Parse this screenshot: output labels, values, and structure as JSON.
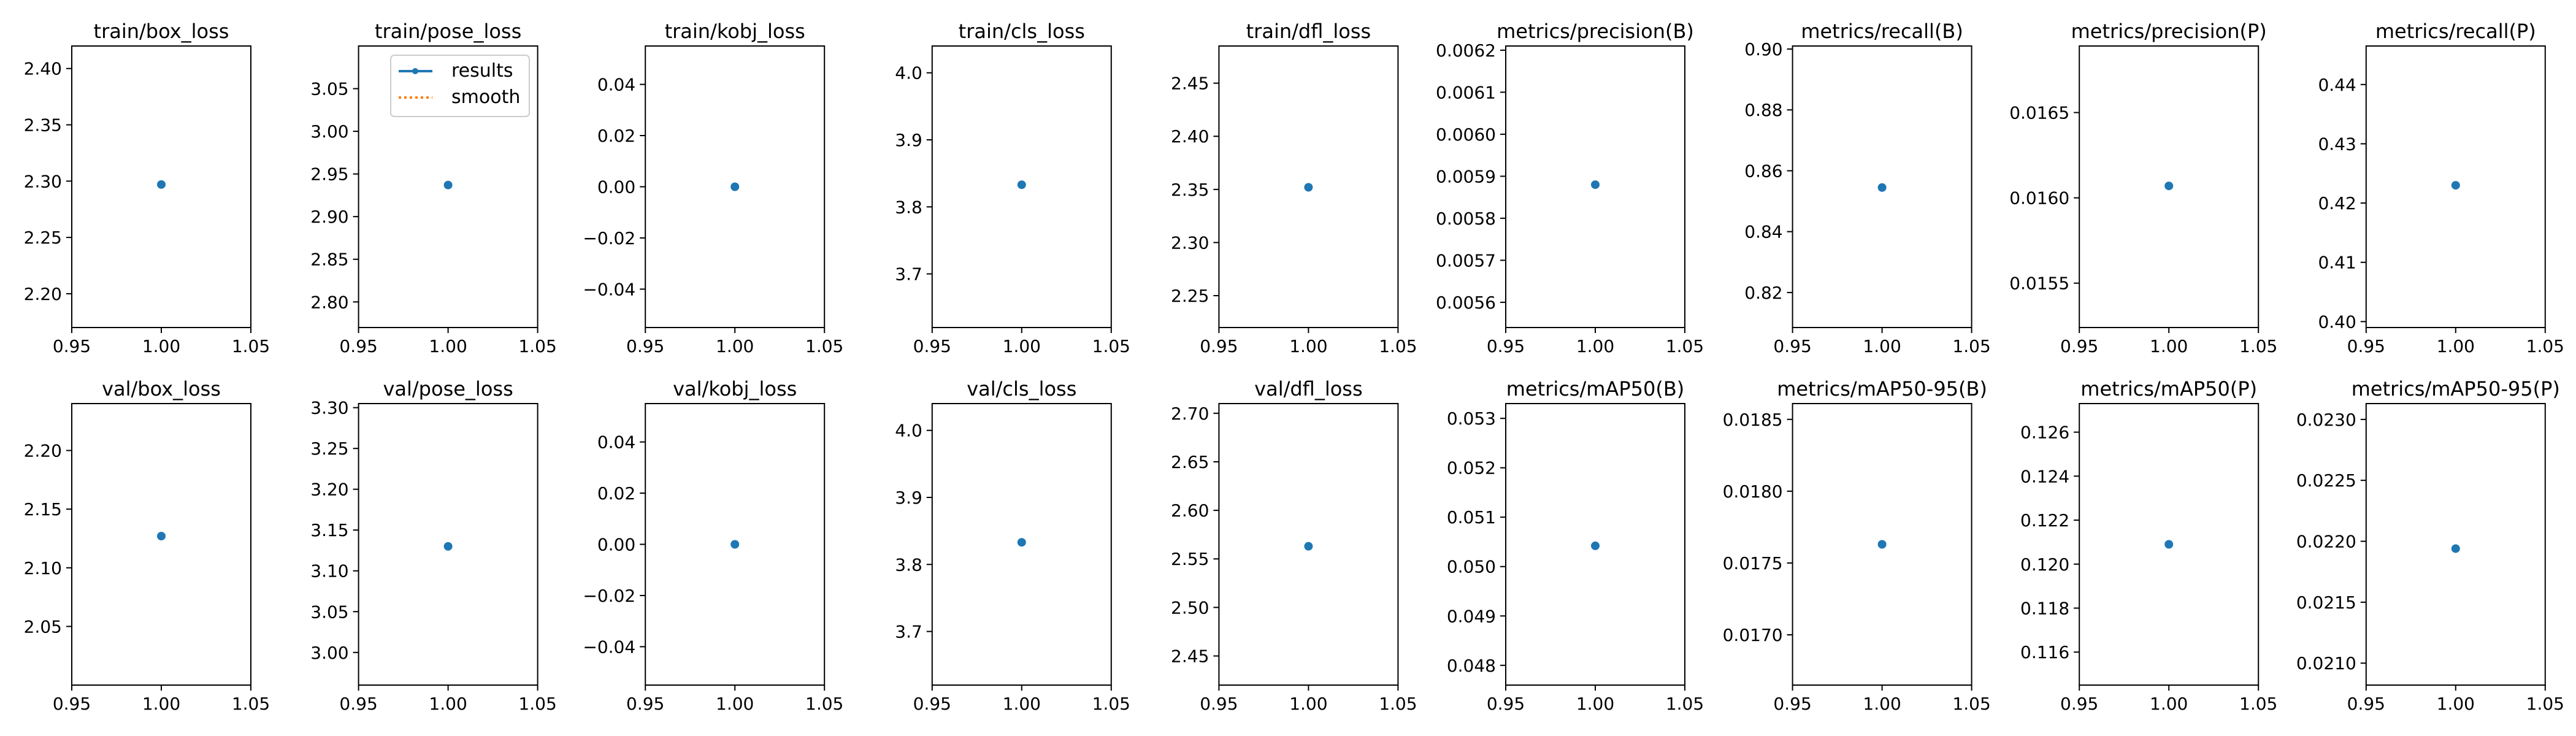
{
  "legend": {
    "entries": [
      {
        "label": "results",
        "color": "#1f77b4",
        "style": "solid-marker"
      },
      {
        "label": "smooth",
        "color": "#ff7f0e",
        "style": "dotted"
      }
    ],
    "placement": "upper-right of train/pose_loss panel"
  },
  "chart_data": [
    {
      "type": "line",
      "title": "train/box_loss",
      "x": [
        1.0
      ],
      "series": [
        {
          "name": "results",
          "values": [
            2.297
          ]
        }
      ],
      "xlim": [
        0.95,
        1.05
      ],
      "xticks": [
        "0.95",
        "1.00",
        "1.05"
      ],
      "ylim": [
        2.17,
        2.42
      ],
      "yticks": [
        "2.20",
        "2.25",
        "2.30",
        "2.35",
        "2.40"
      ]
    },
    {
      "type": "line",
      "title": "train/pose_loss",
      "x": [
        1.0
      ],
      "series": [
        {
          "name": "results",
          "values": [
            2.937
          ]
        }
      ],
      "xlim": [
        0.95,
        1.05
      ],
      "xticks": [
        "0.95",
        "1.00",
        "1.05"
      ],
      "ylim": [
        2.77,
        3.1
      ],
      "yticks": [
        "2.80",
        "2.85",
        "2.90",
        "2.95",
        "3.00",
        "3.05"
      ]
    },
    {
      "type": "line",
      "title": "train/kobj_loss",
      "x": [
        1.0
      ],
      "series": [
        {
          "name": "results",
          "values": [
            0.0
          ]
        }
      ],
      "xlim": [
        0.95,
        1.05
      ],
      "xticks": [
        "0.95",
        "1.00",
        "1.05"
      ],
      "ylim": [
        -0.055,
        0.055
      ],
      "yticks": [
        "−0.04",
        "−0.02",
        "0.00",
        "0.02",
        "0.04"
      ]
    },
    {
      "type": "line",
      "title": "train/cls_loss",
      "x": [
        1.0
      ],
      "series": [
        {
          "name": "results",
          "values": [
            3.833
          ]
        }
      ],
      "xlim": [
        0.95,
        1.05
      ],
      "xticks": [
        "0.95",
        "1.00",
        "1.05"
      ],
      "ylim": [
        3.62,
        4.04
      ],
      "yticks": [
        "3.7",
        "3.8",
        "3.9",
        "4.0"
      ]
    },
    {
      "type": "line",
      "title": "train/dfl_loss",
      "x": [
        1.0
      ],
      "series": [
        {
          "name": "results",
          "values": [
            2.352
          ]
        }
      ],
      "xlim": [
        0.95,
        1.05
      ],
      "xticks": [
        "0.95",
        "1.00",
        "1.05"
      ],
      "ylim": [
        2.22,
        2.485
      ],
      "yticks": [
        "2.25",
        "2.30",
        "2.35",
        "2.40",
        "2.45"
      ]
    },
    {
      "type": "line",
      "title": "metrics/precision(B)",
      "x": [
        1.0
      ],
      "series": [
        {
          "name": "results",
          "values": [
            0.00588
          ]
        }
      ],
      "xlim": [
        0.95,
        1.05
      ],
      "xticks": [
        "0.95",
        "1.00",
        "1.05"
      ],
      "ylim": [
        0.00554,
        0.00621
      ],
      "yticks": [
        "0.0056",
        "0.0057",
        "0.0058",
        "0.0059",
        "0.0060",
        "0.0061",
        "0.0062"
      ]
    },
    {
      "type": "line",
      "title": "metrics/recall(B)",
      "x": [
        1.0
      ],
      "series": [
        {
          "name": "results",
          "values": [
            0.8545
          ]
        }
      ],
      "xlim": [
        0.95,
        1.05
      ],
      "xticks": [
        "0.95",
        "1.00",
        "1.05"
      ],
      "ylim": [
        0.8085,
        0.901
      ],
      "yticks": [
        "0.82",
        "0.84",
        "0.86",
        "0.88",
        "0.90"
      ]
    },
    {
      "type": "line",
      "title": "metrics/precision(P)",
      "x": [
        1.0
      ],
      "series": [
        {
          "name": "results",
          "values": [
            0.01607
          ]
        }
      ],
      "xlim": [
        0.95,
        1.05
      ],
      "xticks": [
        "0.95",
        "1.00",
        "1.05"
      ],
      "ylim": [
        0.01524,
        0.01689
      ],
      "yticks": [
        "0.0155",
        "0.0160",
        "0.0165"
      ]
    },
    {
      "type": "line",
      "title": "metrics/recall(P)",
      "x": [
        1.0
      ],
      "series": [
        {
          "name": "results",
          "values": [
            0.423
          ]
        }
      ],
      "xlim": [
        0.95,
        1.05
      ],
      "xticks": [
        "0.95",
        "1.00",
        "1.05"
      ],
      "ylim": [
        0.399,
        0.4465
      ],
      "yticks": [
        "0.40",
        "0.41",
        "0.42",
        "0.43",
        "0.44"
      ]
    },
    {
      "type": "line",
      "title": "val/box_loss",
      "x": [
        1.0
      ],
      "series": [
        {
          "name": "results",
          "values": [
            2.127
          ]
        }
      ],
      "xlim": [
        0.95,
        1.05
      ],
      "xticks": [
        "0.95",
        "1.00",
        "1.05"
      ],
      "ylim": [
        2.0,
        2.24
      ],
      "yticks": [
        "2.05",
        "2.10",
        "2.15",
        "2.20"
      ]
    },
    {
      "type": "line",
      "title": "val/pose_loss",
      "x": [
        1.0
      ],
      "series": [
        {
          "name": "results",
          "values": [
            3.13
          ]
        }
      ],
      "xlim": [
        0.95,
        1.05
      ],
      "xticks": [
        "0.95",
        "1.00",
        "1.05"
      ],
      "ylim": [
        2.96,
        3.305
      ],
      "yticks": [
        "3.00",
        "3.05",
        "3.10",
        "3.15",
        "3.20",
        "3.25",
        "3.30"
      ]
    },
    {
      "type": "line",
      "title": "val/kobj_loss",
      "x": [
        1.0
      ],
      "series": [
        {
          "name": "results",
          "values": [
            0.0
          ]
        }
      ],
      "xlim": [
        0.95,
        1.05
      ],
      "xticks": [
        "0.95",
        "1.00",
        "1.05"
      ],
      "ylim": [
        -0.055,
        0.055
      ],
      "yticks": [
        "−0.04",
        "−0.02",
        "0.00",
        "0.02",
        "0.04"
      ]
    },
    {
      "type": "line",
      "title": "val/cls_loss",
      "x": [
        1.0
      ],
      "series": [
        {
          "name": "results",
          "values": [
            3.833
          ]
        }
      ],
      "xlim": [
        0.95,
        1.05
      ],
      "xticks": [
        "0.95",
        "1.00",
        "1.05"
      ],
      "ylim": [
        3.62,
        4.04
      ],
      "yticks": [
        "3.7",
        "3.8",
        "3.9",
        "4.0"
      ]
    },
    {
      "type": "line",
      "title": "val/dfl_loss",
      "x": [
        1.0
      ],
      "series": [
        {
          "name": "results",
          "values": [
            2.563
          ]
        }
      ],
      "xlim": [
        0.95,
        1.05
      ],
      "xticks": [
        "0.95",
        "1.00",
        "1.05"
      ],
      "ylim": [
        2.42,
        2.71
      ],
      "yticks": [
        "2.45",
        "2.50",
        "2.55",
        "2.60",
        "2.65",
        "2.70"
      ]
    },
    {
      "type": "line",
      "title": "metrics/mAP50(B)",
      "x": [
        1.0
      ],
      "series": [
        {
          "name": "results",
          "values": [
            0.05042
          ]
        }
      ],
      "xlim": [
        0.95,
        1.05
      ],
      "xticks": [
        "0.95",
        "1.00",
        "1.05"
      ],
      "ylim": [
        0.0476,
        0.0533
      ],
      "yticks": [
        "0.048",
        "0.049",
        "0.050",
        "0.051",
        "0.052",
        "0.053"
      ]
    },
    {
      "type": "line",
      "title": "metrics/mAP50-95(B)",
      "x": [
        1.0
      ],
      "series": [
        {
          "name": "results",
          "values": [
            0.01763
          ]
        }
      ],
      "xlim": [
        0.95,
        1.05
      ],
      "xticks": [
        "0.95",
        "1.00",
        "1.05"
      ],
      "ylim": [
        0.01665,
        0.01861
      ],
      "yticks": [
        "0.0170",
        "0.0175",
        "0.0180",
        "0.0185"
      ]
    },
    {
      "type": "line",
      "title": "metrics/mAP50(P)",
      "x": [
        1.0
      ],
      "series": [
        {
          "name": "results",
          "values": [
            0.1209
          ]
        }
      ],
      "xlim": [
        0.95,
        1.05
      ],
      "xticks": [
        "0.95",
        "1.00",
        "1.05"
      ],
      "ylim": [
        0.1145,
        0.1273
      ],
      "yticks": [
        "0.116",
        "0.118",
        "0.120",
        "0.122",
        "0.124",
        "0.126"
      ]
    },
    {
      "type": "line",
      "title": "metrics/mAP50-95(P)",
      "x": [
        1.0
      ],
      "series": [
        {
          "name": "results",
          "values": [
            0.02194
          ]
        }
      ],
      "xlim": [
        0.95,
        1.05
      ],
      "xticks": [
        "0.95",
        "1.00",
        "1.05"
      ],
      "ylim": [
        0.02082,
        0.02313
      ],
      "yticks": [
        "0.0210",
        "0.0215",
        "0.0220",
        "0.0225",
        "0.0230"
      ]
    }
  ]
}
